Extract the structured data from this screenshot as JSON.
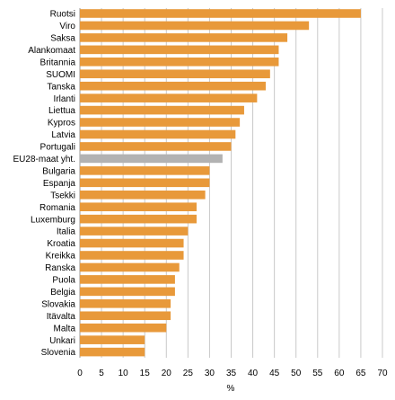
{
  "chart_data": {
    "type": "bar",
    "orientation": "horizontal",
    "categories": [
      "Ruotsi",
      "Viro",
      "Saksa",
      "Alankomaat",
      "Britannia",
      "SUOMI",
      "Tanska",
      "Irlanti",
      "Liettua",
      "Kypros",
      "Latvia",
      "Portugali",
      "EU28-maat yht.",
      "Bulgaria",
      "Espanja",
      "Tsekki",
      "Romania",
      "Luxemburg",
      "Italia",
      "Kroatia",
      "Kreikka",
      "Ranska",
      "Puola",
      "Belgia",
      "Slovakia",
      "Itävalta",
      "Malta",
      "Unkari",
      "Slovenia"
    ],
    "values": [
      65,
      53,
      48,
      46,
      46,
      44,
      43,
      41,
      38,
      37,
      36,
      35,
      33,
      30,
      30,
      29,
      27,
      27,
      25,
      24,
      24,
      23,
      22,
      22,
      21,
      21,
      20,
      15,
      15
    ],
    "highlight_category": "EU28-maat yht.",
    "xlim": [
      0,
      70
    ],
    "xticks": [
      0,
      5,
      10,
      15,
      20,
      25,
      30,
      35,
      40,
      45,
      50,
      55,
      60,
      65,
      70
    ],
    "xlabel": "%",
    "ylabel": "",
    "title": "",
    "grid": "vertical",
    "colors": {
      "bar": "#E8993A",
      "highlight": "#B2B2B2",
      "grid": "#C8C8C8"
    }
  }
}
